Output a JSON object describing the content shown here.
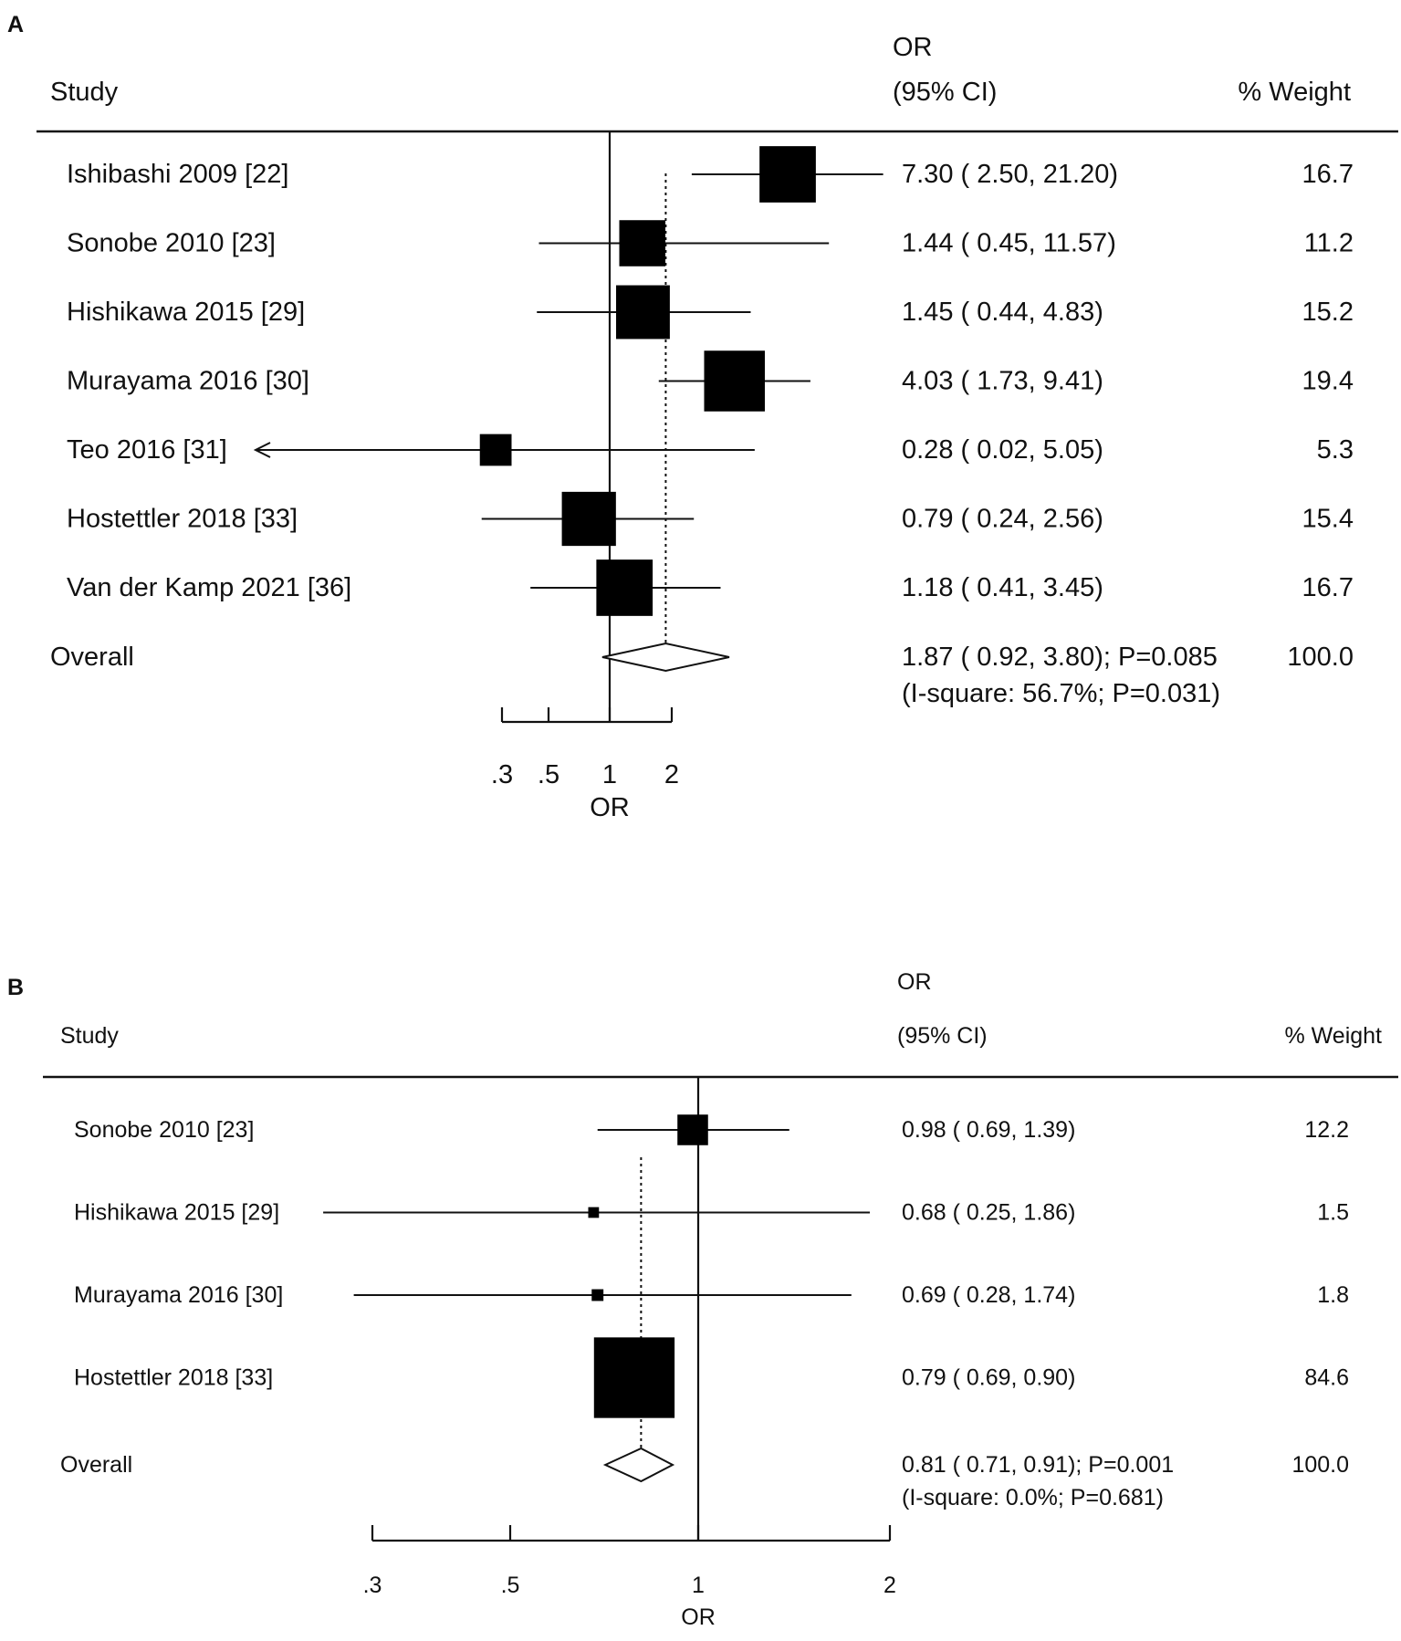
{
  "chart_data": [
    {
      "type": "forest",
      "panel_label": "A",
      "column_headers": {
        "study": "Study",
        "or_line1": "OR",
        "or_line2": "(95% CI)",
        "weight": "% Weight"
      },
      "studies": [
        {
          "name": "Ishibashi 2009 [22]",
          "or": 7.3,
          "lower": 2.5,
          "upper": 21.2,
          "ci_text": "7.30 ( 2.50, 21.20)",
          "weight": "16.7"
        },
        {
          "name": "Sonobe 2010 [23]",
          "or": 1.44,
          "lower": 0.45,
          "upper": 11.57,
          "ci_text": "1.44 ( 0.45, 11.57)",
          "weight": "11.2"
        },
        {
          "name": "Hishikawa 2015 [29]",
          "or": 1.45,
          "lower": 0.44,
          "upper": 4.83,
          "ci_text": "1.45 ( 0.44, 4.83)",
          "weight": "15.2"
        },
        {
          "name": "Murayama 2016 [30]",
          "or": 4.03,
          "lower": 1.73,
          "upper": 9.41,
          "ci_text": "4.03 ( 1.73, 9.41)",
          "weight": "19.4"
        },
        {
          "name": "Teo 2016 [31]",
          "or": 0.28,
          "lower": 0.02,
          "upper": 5.05,
          "ci_text": "0.28 ( 0.02, 5.05)",
          "weight": "5.3"
        },
        {
          "name": "Hostettler 2018 [33]",
          "or": 0.79,
          "lower": 0.24,
          "upper": 2.56,
          "ci_text": "0.79 ( 0.24, 2.56)",
          "weight": "15.4"
        },
        {
          "name": "Van der Kamp 2021 [36]",
          "or": 1.18,
          "lower": 0.41,
          "upper": 3.45,
          "ci_text": "1.18 ( 0.41, 3.45)",
          "weight": "16.7"
        }
      ],
      "overall": {
        "label": "Overall",
        "or": 1.87,
        "lower": 0.92,
        "upper": 3.8,
        "ci_text": "1.87 ( 0.92, 3.80); P=0.085",
        "heterogeneity": "(I-square: 56.7%; P=0.031)",
        "weight": "100.0"
      },
      "x_ticks": [
        {
          "value": 0.3,
          "label": ".3"
        },
        {
          "value": 0.5,
          "label": ".5"
        },
        {
          "value": 1,
          "label": "1"
        },
        {
          "value": 2,
          "label": "2"
        }
      ],
      "xlabel": "OR",
      "null_value": 1
    },
    {
      "type": "forest",
      "panel_label": "B",
      "column_headers": {
        "study": "Study",
        "or_line1": "OR",
        "or_line2": "(95% CI)",
        "weight": "% Weight"
      },
      "studies": [
        {
          "name": "Sonobe 2010 [23]",
          "or": 0.98,
          "lower": 0.69,
          "upper": 1.39,
          "ci_text": "0.98 ( 0.69, 1.39)",
          "weight": "12.2"
        },
        {
          "name": "Hishikawa 2015 [29]",
          "or": 0.68,
          "lower": 0.25,
          "upper": 1.86,
          "ci_text": "0.68 ( 0.25, 1.86)",
          "weight": "1.5"
        },
        {
          "name": "Murayama 2016 [30]",
          "or": 0.69,
          "lower": 0.28,
          "upper": 1.74,
          "ci_text": "0.69 ( 0.28, 1.74)",
          "weight": "1.8"
        },
        {
          "name": "Hostettler 2018 [33]",
          "or": 0.79,
          "lower": 0.69,
          "upper": 0.9,
          "ci_text": "0.79 ( 0.69, 0.90)",
          "weight": "84.6"
        }
      ],
      "overall": {
        "label": "Overall",
        "or": 0.81,
        "lower": 0.71,
        "upper": 0.91,
        "ci_text": "0.81 ( 0.71, 0.91); P=0.001",
        "heterogeneity": "(I-square: 0.0%; P=0.681)",
        "weight": "100.0"
      },
      "x_ticks": [
        {
          "value": 0.3,
          "label": ".3"
        },
        {
          "value": 0.5,
          "label": ".5"
        },
        {
          "value": 1,
          "label": "1"
        },
        {
          "value": 2,
          "label": "2"
        }
      ],
      "xlabel": "OR",
      "null_value": 1
    }
  ]
}
